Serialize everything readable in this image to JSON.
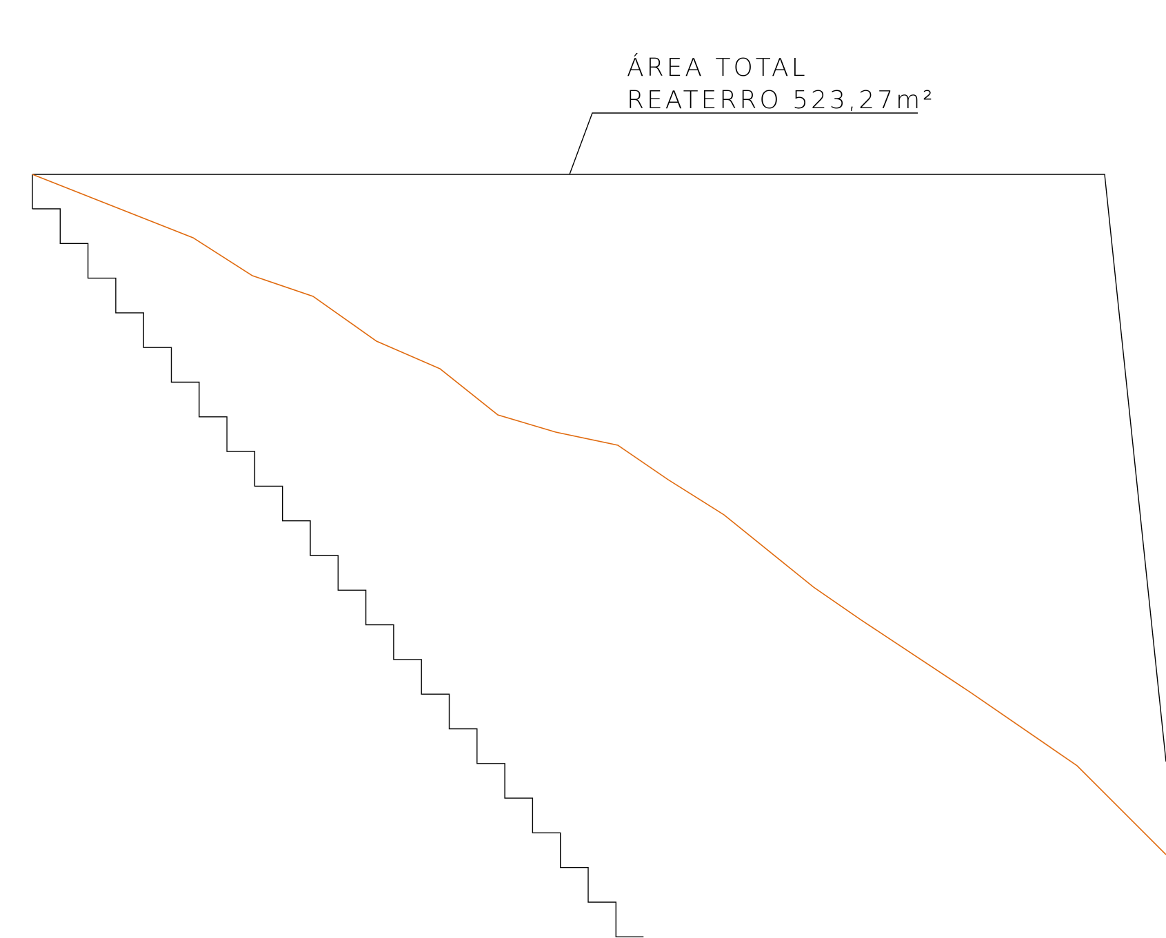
{
  "annotation": {
    "line1": "ÁREA TOTAL",
    "line2": "REATERRO 523,27m²"
  },
  "colors": {
    "background": "#ffffff",
    "section_outline": "#000000",
    "terrain_profile": "#e06a0e",
    "excavation_steps": "#000000",
    "leader_line": "#000000",
    "annotation_text": "#000000"
  }
}
